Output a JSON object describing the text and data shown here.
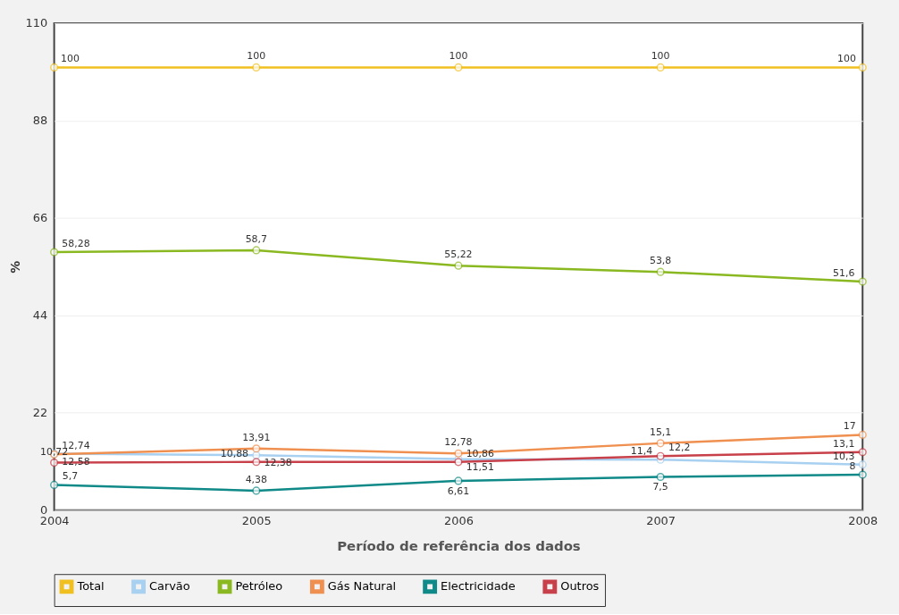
{
  "chart_data": {
    "type": "line",
    "xlabel": "Período de referência dos dados",
    "ylabel": "%",
    "categories": [
      "2004",
      "2005",
      "2006",
      "2007",
      "2008"
    ],
    "series": [
      {
        "name": "Total",
        "color": "#f0c020",
        "values": [
          100,
          100,
          100,
          100,
          100
        ],
        "value_labels": [
          "100",
          "100",
          "100",
          "100",
          "100"
        ]
      },
      {
        "name": "Carvão",
        "color": "#a8d0f0",
        "values": [
          12.74,
          12.38,
          11.51,
          11.4,
          10.3
        ],
        "value_labels": [
          "12,74",
          "12,38",
          "11,51",
          "11,4",
          "10,3"
        ]
      },
      {
        "name": "Petróleo",
        "color": "#8ab820",
        "values": [
          58.28,
          58.7,
          55.22,
          53.8,
          51.6
        ],
        "value_labels": [
          "58,28",
          "58,7",
          "55,22",
          "53,8",
          "51,6"
        ]
      },
      {
        "name": "Gás Natural",
        "color": "#f09050",
        "values": [
          12.58,
          13.91,
          12.78,
          15.1,
          17
        ],
        "value_labels": [
          "12,58",
          "13,91",
          "12,78",
          "15,1",
          "17"
        ]
      },
      {
        "name": "Electricidade",
        "color": "#108a88",
        "values": [
          5.7,
          4.38,
          6.61,
          7.5,
          8
        ],
        "value_labels": [
          "5,7",
          "4,38",
          "6,61",
          "7,5",
          "8"
        ]
      },
      {
        "name": "Outros",
        "color": "#c8404a",
        "values": [
          10.72,
          10.88,
          10.86,
          12.2,
          13.1
        ],
        "value_labels": [
          "10,72",
          "10,88",
          "10,86",
          "12,2",
          "13,1"
        ]
      }
    ],
    "ylim": [
      0,
      110
    ],
    "yticks": [
      0,
      22,
      44,
      66,
      88,
      110
    ],
    "grid": "y",
    "legend": "bottom",
    "marker": "circle",
    "line_style": "solid"
  }
}
